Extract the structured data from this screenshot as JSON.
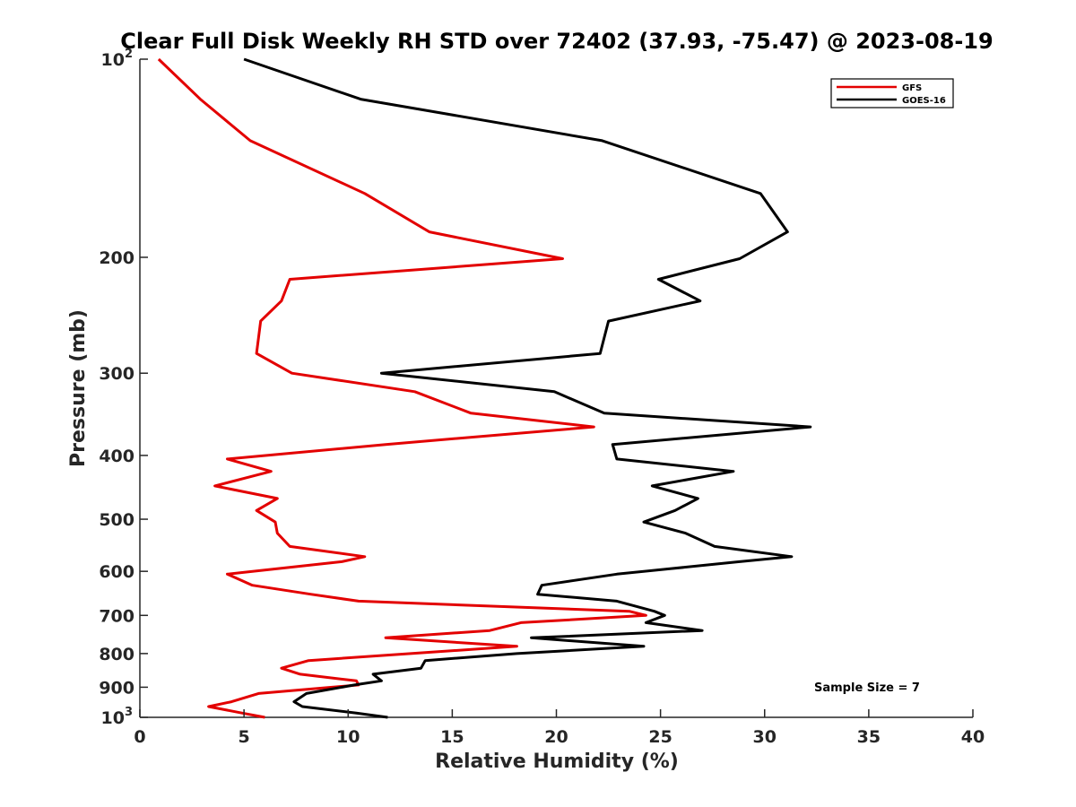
{
  "chart_data": {
    "type": "line",
    "title": "Clear Full Disk Weekly RH STD over 72402 (37.93, -75.47) @ 2023-08-19",
    "xlabel": "Relative Humidity (%)",
    "ylabel": "Pressure (mb)",
    "xlim": [
      0,
      40
    ],
    "ylim": [
      100,
      1000
    ],
    "yscale": "log",
    "y_reversed": true,
    "grid": false,
    "x_ticks": [
      0,
      5,
      10,
      15,
      20,
      25,
      30,
      35,
      40
    ],
    "x_tick_labels": [
      "0",
      "5",
      "10",
      "15",
      "20",
      "25",
      "30",
      "35",
      "40"
    ],
    "y_ticks": [
      {
        "value": 100,
        "label": "10",
        "sup": "2"
      },
      {
        "value": 200,
        "label": "200",
        "sup": ""
      },
      {
        "value": 300,
        "label": "300",
        "sup": ""
      },
      {
        "value": 400,
        "label": "400",
        "sup": ""
      },
      {
        "value": 500,
        "label": "500",
        "sup": ""
      },
      {
        "value": 600,
        "label": "600",
        "sup": ""
      },
      {
        "value": 700,
        "label": "700",
        "sup": ""
      },
      {
        "value": 800,
        "label": "800",
        "sup": ""
      },
      {
        "value": 900,
        "label": "900",
        "sup": ""
      },
      {
        "value": 1000,
        "label": "10",
        "sup": "3"
      }
    ],
    "legend_position": "top-right",
    "annotation": "Sample Size = 7",
    "series": [
      {
        "name": "GFS",
        "color": "#e30000",
        "points": [
          [
            0.9,
            100
          ],
          [
            2.9,
            115
          ],
          [
            5.3,
            133
          ],
          [
            10.8,
            160
          ],
          [
            13.9,
            183
          ],
          [
            20.3,
            201
          ],
          [
            7.2,
            216
          ],
          [
            6.8,
            233
          ],
          [
            5.8,
            250
          ],
          [
            5.6,
            280
          ],
          [
            7.3,
            300
          ],
          [
            13.2,
            320
          ],
          [
            15.9,
            345
          ],
          [
            21.8,
            362
          ],
          [
            11.8,
            385
          ],
          [
            4.2,
            405
          ],
          [
            6.3,
            423
          ],
          [
            3.6,
            445
          ],
          [
            6.6,
            465
          ],
          [
            5.6,
            485
          ],
          [
            6.5,
            505
          ],
          [
            6.6,
            525
          ],
          [
            7.2,
            550
          ],
          [
            10.8,
            570
          ],
          [
            9.7,
            580
          ],
          [
            4.2,
            606
          ],
          [
            5.4,
            630
          ],
          [
            8.2,
            650
          ],
          [
            10.5,
            666
          ],
          [
            23.5,
            690
          ],
          [
            24.3,
            700
          ],
          [
            18.3,
            718
          ],
          [
            16.8,
            738
          ],
          [
            11.8,
            757
          ],
          [
            18.1,
            780
          ],
          [
            13.0,
            800
          ],
          [
            8.1,
            820
          ],
          [
            6.8,
            842
          ],
          [
            7.7,
            860
          ],
          [
            10.4,
            880
          ],
          [
            10.5,
            893
          ],
          [
            5.7,
            920
          ],
          [
            4.4,
            947
          ],
          [
            3.3,
            963
          ],
          [
            4.9,
            985
          ],
          [
            6.0,
            1000
          ]
        ]
      },
      {
        "name": "GOES-16",
        "color": "#000000",
        "points": [
          [
            5.0,
            100
          ],
          [
            10.6,
            115
          ],
          [
            22.2,
            133
          ],
          [
            29.8,
            160
          ],
          [
            31.1,
            183
          ],
          [
            28.8,
            201
          ],
          [
            24.9,
            216
          ],
          [
            26.9,
            233
          ],
          [
            22.5,
            250
          ],
          [
            22.1,
            280
          ],
          [
            11.6,
            300
          ],
          [
            19.9,
            320
          ],
          [
            22.3,
            345
          ],
          [
            32.2,
            362
          ],
          [
            22.7,
            385
          ],
          [
            22.9,
            405
          ],
          [
            28.5,
            423
          ],
          [
            24.6,
            445
          ],
          [
            26.8,
            465
          ],
          [
            25.7,
            485
          ],
          [
            24.2,
            505
          ],
          [
            26.2,
            525
          ],
          [
            27.6,
            550
          ],
          [
            31.3,
            570
          ],
          [
            28.8,
            580
          ],
          [
            22.9,
            606
          ],
          [
            19.3,
            630
          ],
          [
            19.1,
            650
          ],
          [
            22.9,
            666
          ],
          [
            24.7,
            690
          ],
          [
            25.2,
            700
          ],
          [
            24.3,
            718
          ],
          [
            27.0,
            738
          ],
          [
            18.8,
            757
          ],
          [
            24.2,
            780
          ],
          [
            18.1,
            800
          ],
          [
            13.7,
            820
          ],
          [
            13.5,
            842
          ],
          [
            11.2,
            860
          ],
          [
            11.6,
            880
          ],
          [
            10.3,
            893
          ],
          [
            8.0,
            920
          ],
          [
            7.4,
            947
          ],
          [
            7.8,
            963
          ],
          [
            10.4,
            985
          ],
          [
            11.9,
            1000
          ]
        ]
      }
    ]
  }
}
